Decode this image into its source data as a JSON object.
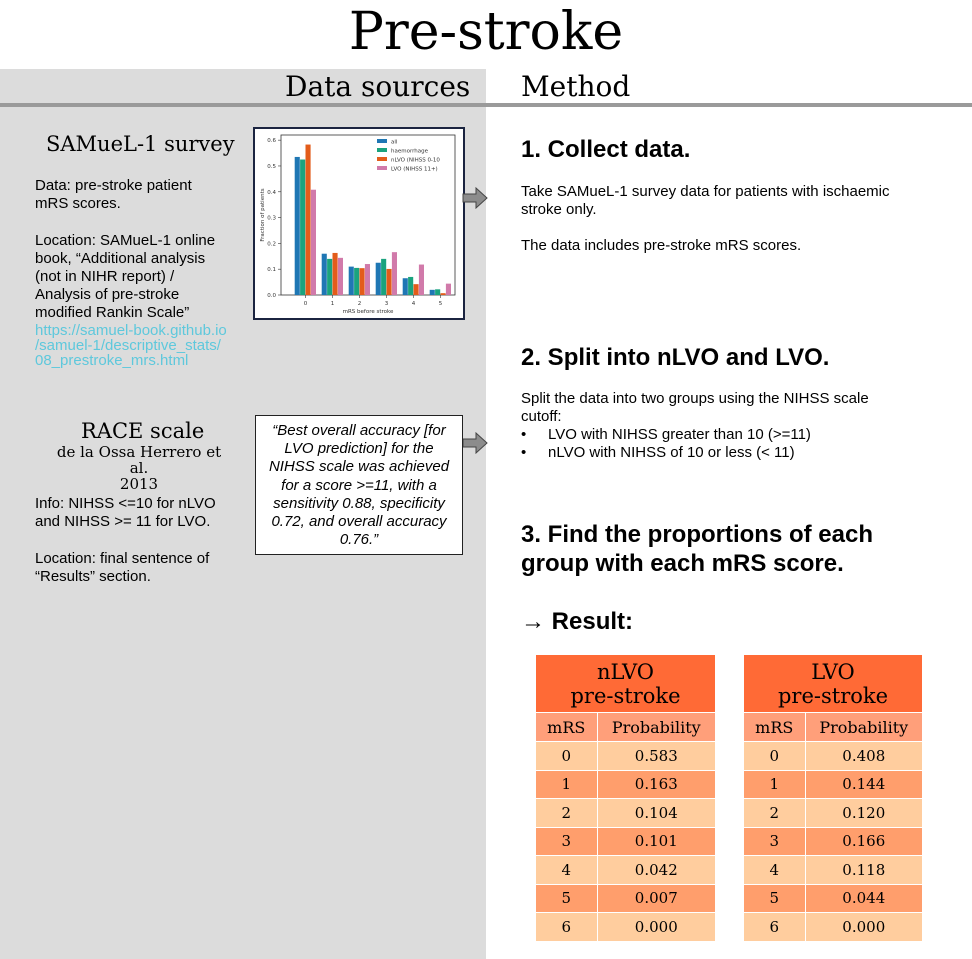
{
  "title": "Pre-stroke",
  "headers": {
    "sources": "Data sources",
    "method": "Method"
  },
  "samuel": {
    "title": "SAMueL-1 survey",
    "data_line1": "Data: pre-stroke patient",
    "data_line2": "mRS scores.",
    "loc_line1": "Location: SAMueL-1 online",
    "loc_line2": "book, “Additional analysis",
    "loc_line3": "(not in NIHR report) /",
    "loc_line4": "Analysis of pre-stroke",
    "loc_line5": "modified Rankin Scale”",
    "url_line1": "https://samuel-book.github.io",
    "url_line2": "/samuel-1/descriptive_stats/",
    "url_line3": "08_prestroke_mrs.html"
  },
  "race": {
    "title": "RACE scale",
    "author": "de la Ossa Herrero et al.",
    "year": "2013",
    "info_line1": "Info: NIHSS <=10 for nLVO",
    "info_line2": "and NIHSS >= 11 for LVO.",
    "loc_line1": "Location: final sentence of",
    "loc_line2": "“Results” section.",
    "quote": "“Best overall accuracy [for LVO prediction] for the NIHSS scale was achieved for a score >=11, with a sensitivity 0.88, specificity 0.72, and overall accuracy 0.76.”"
  },
  "steps": {
    "s1_title": "1. Collect data.",
    "s1_line1": "Take SAMueL-1 survey data for patients with ischaemic",
    "s1_line2": "stroke only.",
    "s1_line3": "The data includes pre-stroke mRS scores.",
    "s2_title": "2. Split into nLVO and LVO.",
    "s2_line1": "Split the data into two groups using the NIHSS scale",
    "s2_line2": "cutoff:",
    "bullet_mark": "•",
    "s2_bullet1": "LVO with NIHSS greater than 10 (>=11)",
    "s2_bullet2": "nLVO with NIHSS of 10 or less (< 11)",
    "s3_line1": "3. Find the proportions of each",
    "s3_line2": "group with each mRS score.",
    "result": "→ Result:"
  },
  "tables": {
    "col_mrs": "mRS",
    "col_prob": "Probability",
    "nlvo": {
      "head1": "nLVO",
      "head2": "pre-stroke",
      "rows": [
        {
          "mrs": "0",
          "p": "0.583"
        },
        {
          "mrs": "1",
          "p": "0.163"
        },
        {
          "mrs": "2",
          "p": "0.104"
        },
        {
          "mrs": "3",
          "p": "0.101"
        },
        {
          "mrs": "4",
          "p": "0.042"
        },
        {
          "mrs": "5",
          "p": "0.007"
        },
        {
          "mrs": "6",
          "p": "0.000"
        }
      ]
    },
    "lvo": {
      "head1": "LVO",
      "head2": "pre-stroke",
      "rows": [
        {
          "mrs": "0",
          "p": "0.408"
        },
        {
          "mrs": "1",
          "p": "0.144"
        },
        {
          "mrs": "2",
          "p": "0.120"
        },
        {
          "mrs": "3",
          "p": "0.166"
        },
        {
          "mrs": "4",
          "p": "0.118"
        },
        {
          "mrs": "5",
          "p": "0.044"
        },
        {
          "mrs": "6",
          "p": "0.000"
        }
      ]
    }
  },
  "chart_data": {
    "type": "bar",
    "categories": [
      "0",
      "1",
      "2",
      "3",
      "4",
      "5"
    ],
    "series": [
      {
        "name": "all",
        "values": [
          0.535,
          0.16,
          0.11,
          0.125,
          0.065,
          0.02
        ],
        "color": "#1f77b4"
      },
      {
        "name": "haemorrhage",
        "values": [
          0.525,
          0.14,
          0.105,
          0.14,
          0.07,
          0.022
        ],
        "color": "#1aa37e"
      },
      {
        "name": "nLVO (NIHSS 0-10",
        "values": [
          0.583,
          0.163,
          0.104,
          0.101,
          0.042,
          0.007
        ],
        "color": "#e35c1a"
      },
      {
        "name": "LVO (NIHSS 11+)",
        "values": [
          0.408,
          0.144,
          0.12,
          0.166,
          0.118,
          0.044
        ],
        "color": "#d17aaa"
      }
    ],
    "xlabel": "mRS before stroke",
    "ylabel": "Fraction of patients",
    "yticks": [
      "0.0",
      "0.1",
      "0.2",
      "0.3",
      "0.4",
      "0.5",
      "0.6"
    ],
    "ylim": [
      0,
      0.62
    ],
    "legend": "top-right"
  },
  "colors": {
    "left_panel": "#dcdcdc",
    "rule": "#9a9a9a",
    "link": "#5ec8dc",
    "table_header": "#ff6a36",
    "table_subheader": "#ff9f7a",
    "row_light": "#ffcd9e",
    "row_dark": "#ff9e6c"
  },
  "icons": [
    "arrow-right-icon",
    "arrow-right-icon"
  ]
}
